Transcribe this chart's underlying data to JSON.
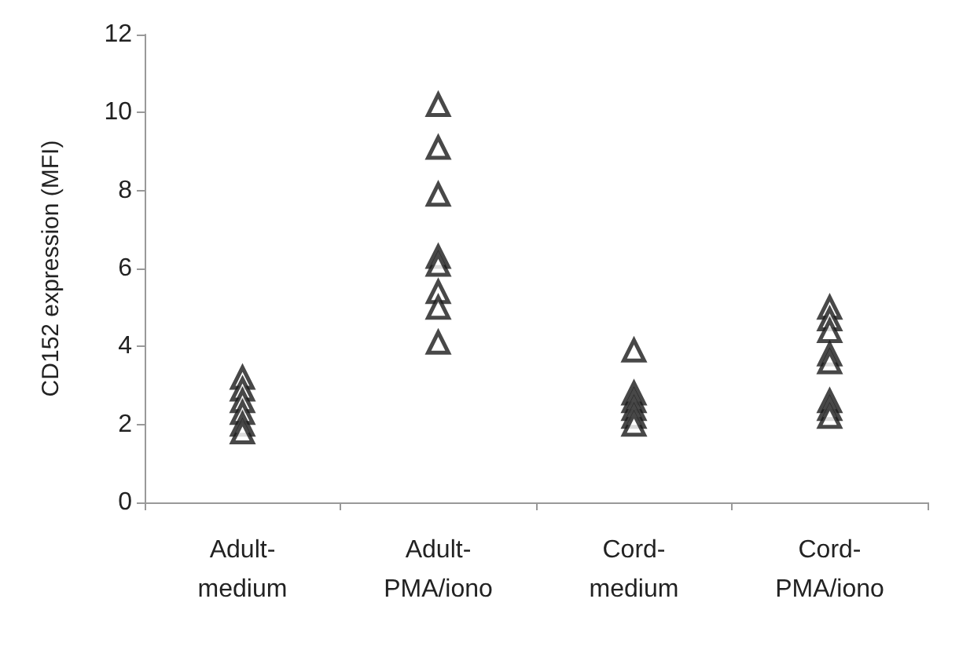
{
  "chart_data": {
    "type": "scatter",
    "ylabel": "CD152 expression (MFI)",
    "categories": [
      "Adult-\nmedium",
      "Adult-\nPMA/iono",
      "Cord-\nmedium",
      "Cord-\nPMA/iono"
    ],
    "series": [
      {
        "color": "#1a1a1a",
        "x": [
          "Adult-\nmedium",
          "Adult-\nmedium",
          "Adult-\nmedium",
          "Adult-\nmedium",
          "Adult-\nmedium",
          "Adult-\nmedium",
          "Adult-\nPMA/iono",
          "Adult-\nPMA/iono",
          "Adult-\nPMA/iono",
          "Adult-\nPMA/iono",
          "Adult-\nPMA/iono",
          "Adult-\nPMA/iono",
          "Adult-\nPMA/iono",
          "Adult-\nPMA/iono",
          "Cord-\nmedium",
          "Cord-\nmedium",
          "Cord-\nmedium",
          "Cord-\nmedium",
          "Cord-\nmedium",
          "Cord-\nmedium",
          "Cord-\nPMA/iono",
          "Cord-\nPMA/iono",
          "Cord-\nPMA/iono",
          "Cord-\nPMA/iono",
          "Cord-\nPMA/iono",
          "Cord-\nPMA/iono",
          "Cord-\nPMA/iono",
          "Cord-\nPMA/iono"
        ],
        "values": [
          3.2,
          2.9,
          2.6,
          2.3,
          2.0,
          1.8,
          10.2,
          9.1,
          7.9,
          6.3,
          6.1,
          5.4,
          5.0,
          4.1,
          3.9,
          2.8,
          2.6,
          2.4,
          2.2,
          2.0,
          5.0,
          4.7,
          4.4,
          3.8,
          3.6,
          2.6,
          2.4,
          2.2
        ]
      }
    ],
    "ylim": [
      0,
      12
    ],
    "yticks": [
      0,
      2,
      4,
      6,
      8,
      10,
      12
    ],
    "marker": "triangle"
  }
}
